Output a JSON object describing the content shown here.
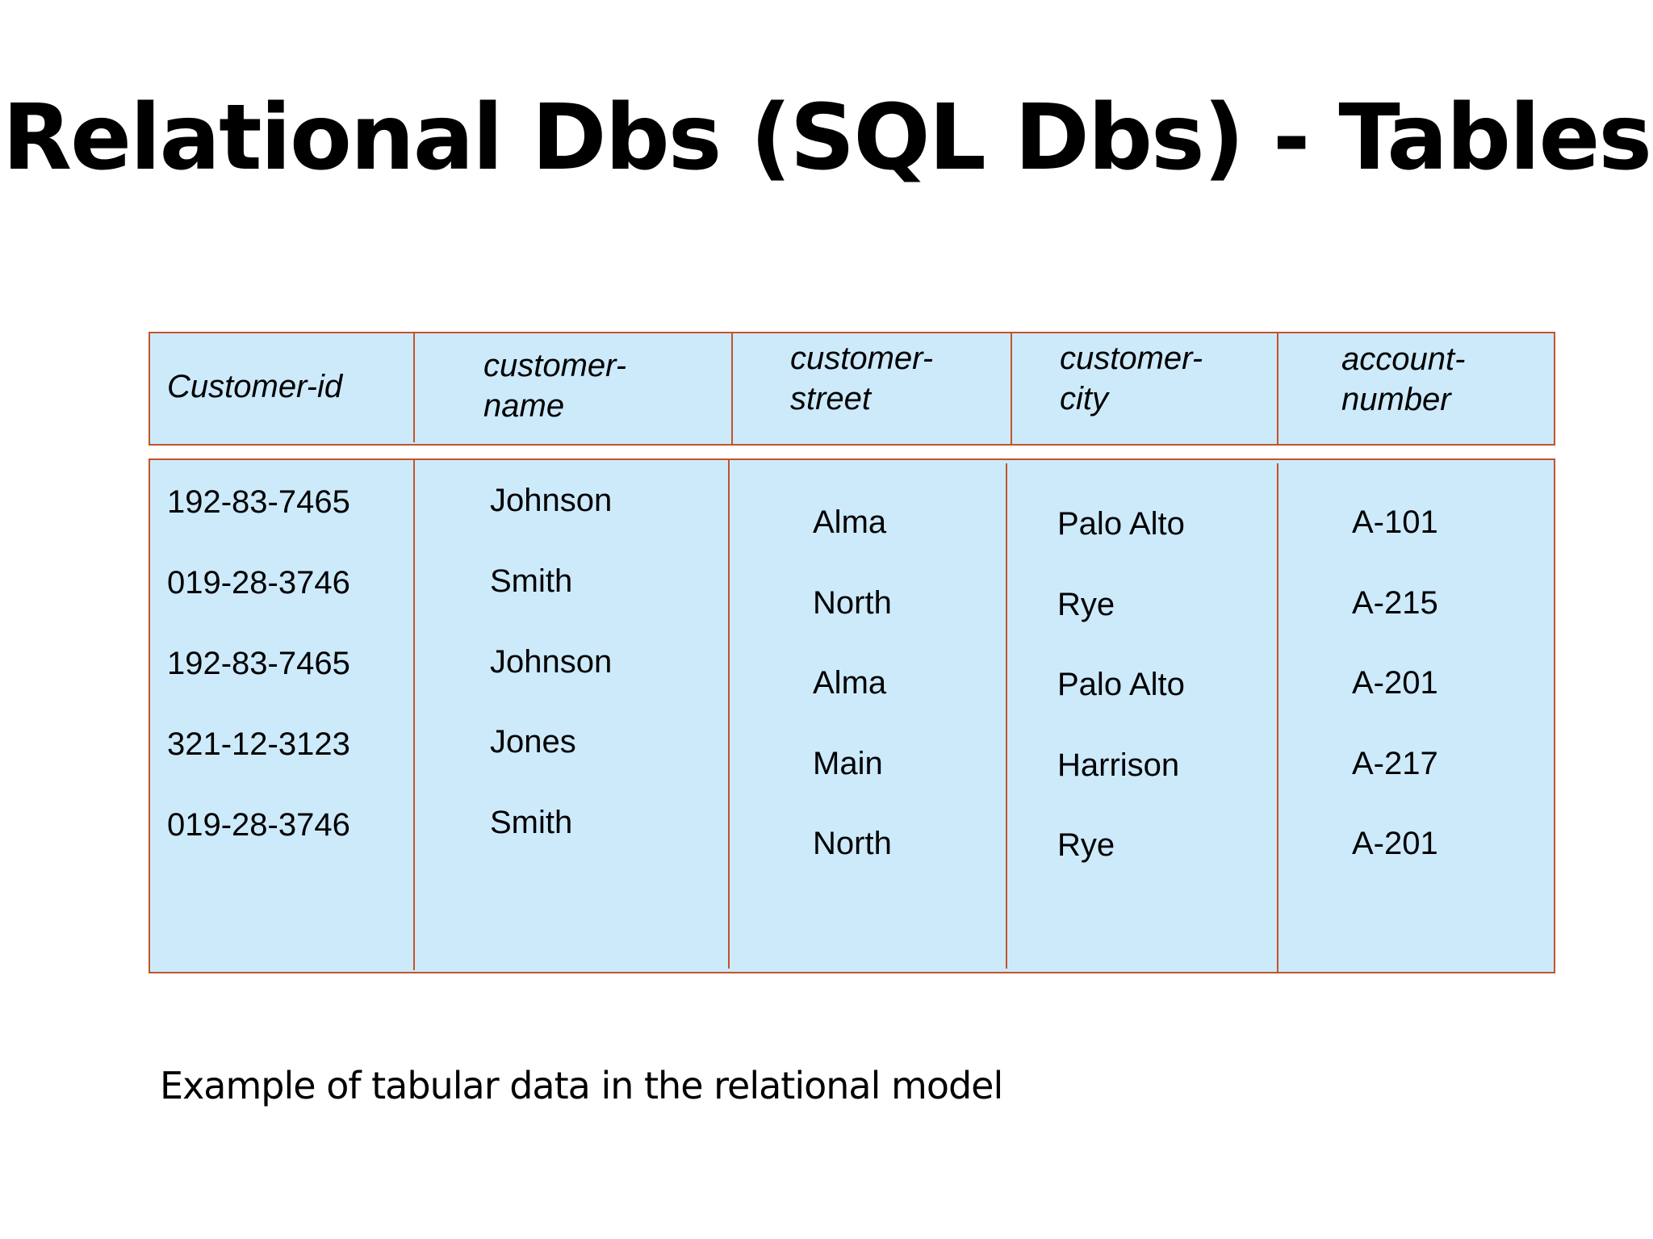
{
  "title": "Relational Dbs (SQL Dbs) - Tables",
  "caption": "Example of tabular data in the relational model",
  "colors": {
    "table_fill": "#cdeafb",
    "table_border": "#c4532c"
  },
  "table": {
    "columns": [
      {
        "key": "customer_id",
        "label": "Customer-id"
      },
      {
        "key": "customer_name",
        "label": "customer-\nname"
      },
      {
        "key": "customer_street",
        "label": "customer-\nstreet"
      },
      {
        "key": "customer_city",
        "label": "customer-\ncity"
      },
      {
        "key": "account_number",
        "label": "account-\nnumber"
      }
    ],
    "rows": [
      {
        "customer_id": "192-83-7465",
        "customer_name": "Johnson",
        "customer_street": "Alma",
        "customer_city": "Palo Alto",
        "account_number": "A-101"
      },
      {
        "customer_id": "019-28-3746",
        "customer_name": "Smith",
        "customer_street": "North",
        "customer_city": "Rye",
        "account_number": "A-215"
      },
      {
        "customer_id": "192-83-7465",
        "customer_name": "Johnson",
        "customer_street": "Alma",
        "customer_city": "Palo Alto",
        "account_number": "A-201"
      },
      {
        "customer_id": "321-12-3123",
        "customer_name": "Jones",
        "customer_street": "Main",
        "customer_city": "Harrison",
        "account_number": "A-217"
      },
      {
        "customer_id": "019-28-3746",
        "customer_name": "Smith",
        "customer_street": "North",
        "customer_city": "Rye",
        "account_number": "A-201"
      }
    ]
  }
}
